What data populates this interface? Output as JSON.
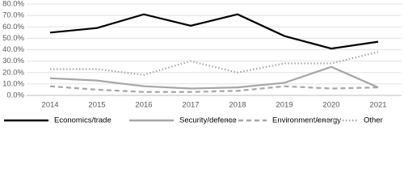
{
  "chart_data": {
    "type": "line",
    "categories": [
      "2014",
      "2015",
      "2016",
      "2017",
      "2018",
      "2019",
      "2020",
      "2021"
    ],
    "series": [
      {
        "name": "Economics/trade",
        "color": "#000000",
        "dash": "solid",
        "values": [
          55,
          59,
          71,
          61,
          71,
          52,
          41,
          47
        ]
      },
      {
        "name": "Security/defence",
        "color": "#a6a6a6",
        "dash": "solid",
        "values": [
          15,
          13,
          8,
          6,
          7,
          11,
          25,
          7
        ]
      },
      {
        "name": "Environment/energy",
        "color": "#a6a6a6",
        "dash": "dashed",
        "values": [
          8,
          5,
          3,
          3,
          4,
          8,
          6,
          7
        ]
      },
      {
        "name": "Other",
        "color": "#a6a6a6",
        "dash": "dotted",
        "values": [
          23,
          23,
          18,
          30,
          20,
          28,
          28,
          38
        ]
      }
    ],
    "ylim": [
      0,
      80
    ],
    "yticks": [
      {
        "value": 0,
        "label": "0.0%"
      },
      {
        "value": 10,
        "label": "10.0%"
      },
      {
        "value": 20,
        "label": "20.0%"
      },
      {
        "value": 30,
        "label": "30.0%"
      },
      {
        "value": 40,
        "label": "40.0%"
      },
      {
        "value": 50,
        "label": "50.0%"
      },
      {
        "value": 60,
        "label": "60.0%"
      },
      {
        "value": 70,
        "label": "70.0%"
      },
      {
        "value": 80,
        "label": "80.0%"
      }
    ],
    "grid": true
  }
}
